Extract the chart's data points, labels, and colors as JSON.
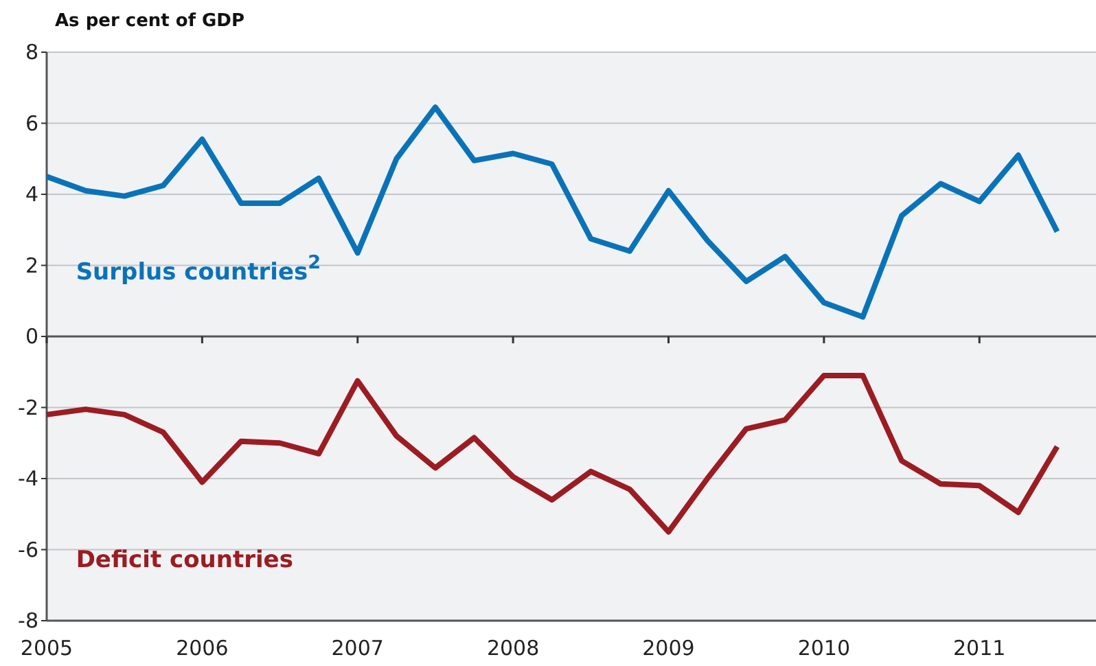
{
  "chart_data": {
    "type": "line",
    "ylabel": "As per cent of GDP",
    "x": [
      2005,
      2005.25,
      2005.5,
      2005.75,
      2006,
      2006.25,
      2006.5,
      2006.75,
      2007,
      2007.25,
      2007.5,
      2007.75,
      2008,
      2008.25,
      2008.5,
      2008.75,
      2009,
      2009.25,
      2009.5,
      2009.75,
      2010,
      2010.25,
      2010.5,
      2010.75,
      2011,
      2011.25,
      2011.5
    ],
    "series": [
      {
        "name": "Surplus countries$^{2}$",
        "color": "#0a73b8",
        "values": [
          4.5,
          4.1,
          3.95,
          4.25,
          5.55,
          3.75,
          3.75,
          4.45,
          2.35,
          5.0,
          6.45,
          4.95,
          5.15,
          4.85,
          2.75,
          2.4,
          4.1,
          2.7,
          1.55,
          2.25,
          0.95,
          0.55,
          3.4,
          4.3,
          3.8,
          5.1,
          2.95
        ]
      },
      {
        "name": "Deficit countries",
        "color": "#9b1c22",
        "values": [
          -2.2,
          -2.05,
          -2.2,
          -2.7,
          -4.1,
          -2.95,
          -3.0,
          -3.3,
          -1.25,
          -2.8,
          -3.7,
          -2.85,
          -3.95,
          -4.6,
          -3.8,
          -4.3,
          -5.5,
          -4.0,
          -2.6,
          -2.35,
          -1.1,
          -1.1,
          -3.5,
          -4.15,
          -4.2,
          -4.95,
          -3.1
        ]
      }
    ],
    "xlim": [
      2005,
      2011.75
    ],
    "xticks": [
      2005,
      2006,
      2007,
      2008,
      2009,
      2010,
      2011
    ],
    "ylim": [
      -8,
      8
    ],
    "yticks": [
      -8,
      -6,
      -4,
      -2,
      0,
      2,
      4,
      6,
      8
    ],
    "grid": "y",
    "marker": "none",
    "line_style": "solid"
  }
}
